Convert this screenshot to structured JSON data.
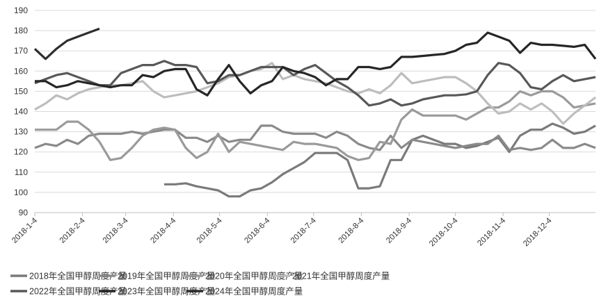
{
  "chart_data": {
    "type": "line",
    "title": "",
    "xlabel": "",
    "ylabel": "",
    "ylim": [
      90,
      190
    ],
    "yticks": [
      90,
      100,
      110,
      120,
      130,
      140,
      150,
      160,
      170,
      180,
      190
    ],
    "grid": "horizontal",
    "legend_placement": "bottom",
    "x_tick_labels": [
      "2018-1-4",
      "2018-2-4",
      "2018-3-4",
      "2018-4-4",
      "2018-5-4",
      "2018-6-4",
      "2018-7-4",
      "2018-8-4",
      "2018-9-4",
      "2018-10-4",
      "2018-11-4",
      "2018-12-4"
    ],
    "x_weekly_start": "2018-1-4",
    "series": [
      {
        "name": "2018年全国甲醇周度产量",
        "color": "#7a7a7a",
        "values": [
          null,
          null,
          null,
          null,
          null,
          null,
          null,
          null,
          null,
          null,
          null,
          null,
          104,
          104,
          104.5,
          103,
          102,
          101,
          98,
          98,
          101,
          102,
          105,
          109,
          112,
          115,
          119.5,
          119.5,
          119.5,
          116,
          102,
          102,
          103,
          116,
          116,
          126,
          128,
          126,
          124,
          124,
          122,
          123,
          125,
          127,
          120,
          128,
          131,
          131,
          134,
          132,
          129,
          130,
          133
        ]
      },
      {
        "name": "2019年全国甲醇周度产量",
        "color": "#8a8a8a",
        "values": [
          122,
          124,
          123,
          126,
          124,
          128,
          129,
          129,
          129,
          130,
          129,
          130,
          131,
          131,
          127,
          127,
          125,
          128,
          125,
          126,
          126,
          133,
          133,
          130,
          129,
          129,
          129,
          127,
          130,
          128,
          124,
          122,
          121,
          128,
          122,
          126,
          125,
          124,
          123,
          122,
          123,
          124,
          124,
          128,
          121,
          122,
          121,
          122,
          126,
          122,
          122,
          124,
          122
        ]
      },
      {
        "name": "2020年全国甲醇周度产量",
        "color": "#9a9a9a",
        "values": [
          131,
          131,
          131,
          135,
          135,
          131,
          125,
          116,
          117,
          122,
          128,
          131,
          132,
          131,
          122,
          117,
          120,
          129,
          120,
          125,
          124,
          123,
          122,
          121,
          125,
          124,
          124,
          123,
          122,
          118,
          116,
          117,
          125,
          124,
          136,
          141,
          138,
          138,
          138,
          138,
          136,
          139,
          142,
          142,
          145,
          150,
          148,
          150,
          150,
          147,
          142,
          143,
          144
        ]
      },
      {
        "name": "2021年全国甲醇周度产量",
        "color": "#bdbdbd",
        "values": [
          141,
          144,
          148,
          146,
          149,
          151,
          152,
          153,
          153,
          154,
          155,
          150,
          147,
          148,
          149,
          150,
          152,
          154,
          157,
          158,
          160,
          161,
          164,
          156,
          158,
          156,
          155,
          154,
          152,
          150,
          149,
          151,
          149,
          153,
          159,
          154,
          155,
          156,
          157,
          157,
          154,
          150,
          144,
          139,
          140,
          144,
          141,
          144,
          140,
          134,
          139,
          143,
          147
        ]
      },
      {
        "name": "2022年全国甲醇周度产量",
        "color": "#585858",
        "values": [
          154,
          156,
          158,
          159,
          157,
          155,
          153,
          153,
          159,
          161,
          163,
          163,
          165,
          163,
          163,
          162,
          154,
          155,
          158,
          158,
          160,
          162,
          162,
          162,
          158,
          161,
          163,
          159,
          155,
          152,
          148,
          143,
          144,
          146,
          143,
          144,
          146,
          147,
          148,
          148,
          148.5,
          150,
          158,
          164,
          163,
          159,
          152,
          151,
          155,
          158,
          155,
          156,
          157
        ]
      },
      {
        "name": "2023年全国甲醇周度产量",
        "color": "#262626",
        "values": [
          155,
          155,
          152,
          153,
          155,
          154,
          153,
          152,
          153,
          153,
          158,
          157,
          160,
          161,
          161,
          151,
          148,
          156,
          163,
          155,
          149,
          153,
          155,
          162,
          160,
          159,
          157,
          153,
          156,
          156,
          162,
          162,
          161,
          162,
          167,
          167,
          167.5,
          168,
          168.5,
          170,
          173,
          174,
          179,
          177,
          175,
          169,
          174,
          173,
          173,
          172.5,
          172,
          173,
          166
        ]
      },
      {
        "name": "2024年全国甲醇周度产量",
        "color": "#2e2e2e",
        "values": [
          171,
          166,
          171,
          175,
          177,
          179,
          181
        ]
      }
    ]
  }
}
